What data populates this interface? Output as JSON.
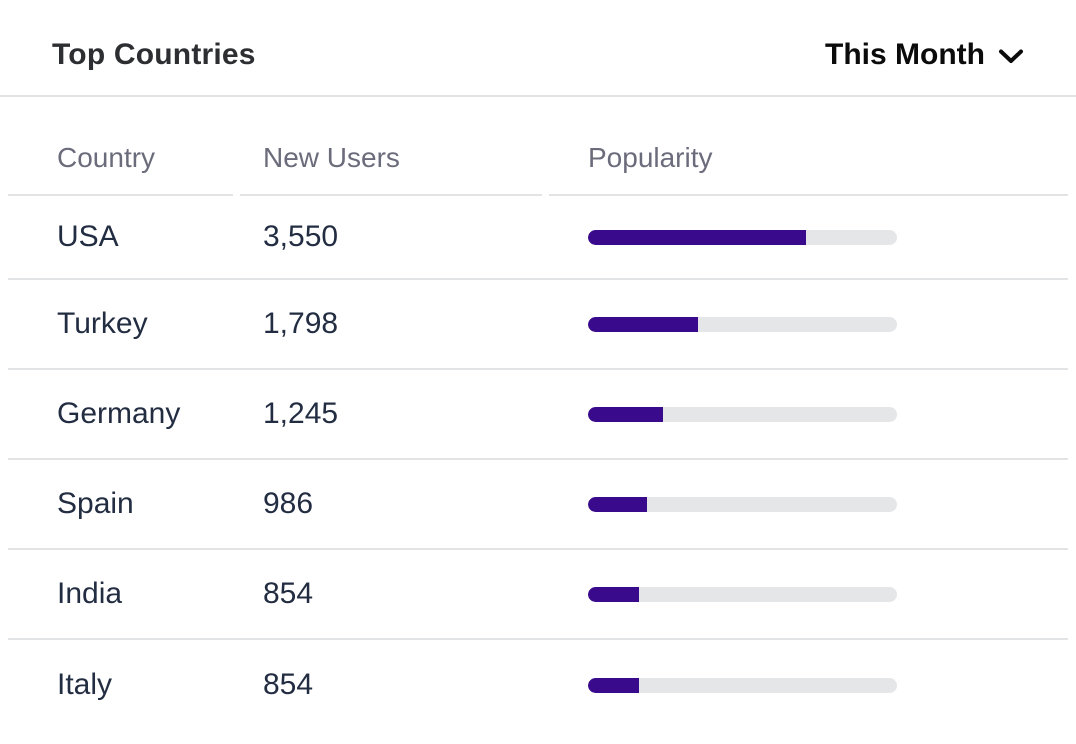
{
  "widget": {
    "title": "Top Countries",
    "period_selector": {
      "label": "This Month",
      "icon": "chevron-down-icon"
    }
  },
  "table": {
    "columns": [
      {
        "label": "Country"
      },
      {
        "label": "New Users"
      },
      {
        "label": "Popularity"
      }
    ],
    "rows": [
      {
        "country": "USA",
        "new_users": "3,550",
        "popularity_pct": 70.6
      },
      {
        "country": "Turkey",
        "new_users": "1,798",
        "popularity_pct": 35.6
      },
      {
        "country": "Germany",
        "new_users": "1,245",
        "popularity_pct": 24.3
      },
      {
        "country": "Spain",
        "new_users": "986",
        "popularity_pct": 19.1
      },
      {
        "country": "India",
        "new_users": "854",
        "popularity_pct": 16.5
      },
      {
        "country": "Italy",
        "new_users": "854",
        "popularity_pct": 16.5
      }
    ]
  },
  "colors": {
    "bar_fill": "#390a8c",
    "bar_track": "#e5e6e8",
    "divider": "#e1e3e5",
    "title_text": "#2d2e31",
    "header_text": "#6b6c7b",
    "cell_text": "#232d42",
    "dropdown_text": "#0b0b0c"
  },
  "chart_data": {
    "type": "table",
    "title": "Top Countries",
    "period": "This Month",
    "columns": [
      "Country",
      "New Users",
      "Popularity"
    ],
    "categories": [
      "USA",
      "Turkey",
      "Germany",
      "Spain",
      "India",
      "Italy"
    ],
    "values": [
      3550,
      1798,
      1245,
      986,
      854,
      854
    ],
    "popularity_percent": [
      70.6,
      35.6,
      24.3,
      19.1,
      16.5,
      16.5
    ],
    "bar_scale_max": 5000
  }
}
